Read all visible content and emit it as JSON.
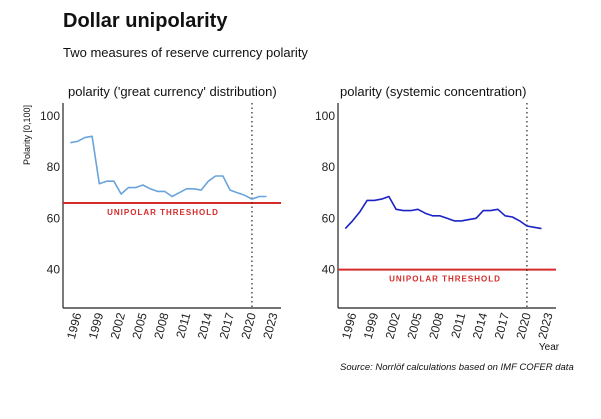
{
  "title": "Dollar unipolarity",
  "subtitle": "Two measures of reserve currency polarity",
  "source": "Source: Norrlöf calculations based on IMF COFER data",
  "colors": {
    "threshold": "#d52b2b",
    "series_left": "#6aa4dc",
    "series_right": "#1b23c4",
    "axis": "#222222"
  },
  "chart_data": [
    {
      "type": "line",
      "title": "polarity ('great currency' distribution)",
      "ylabel": "Polarity [0,100]",
      "xlabel": "",
      "ylim": [
        25,
        105
      ],
      "xlim": [
        1994,
        2024
      ],
      "yticks": [
        40,
        60,
        80,
        100
      ],
      "xticks": [
        "1996",
        "1999",
        "2002",
        "2005",
        "2008",
        "2011",
        "2014",
        "2017",
        "2020",
        "2023"
      ],
      "grid": false,
      "threshold": {
        "value": 66,
        "label": "UNIPOLAR THRESHOLD"
      },
      "vline": 2020,
      "series": [
        {
          "x": [
            1995,
            1996,
            1997,
            1998,
            1999,
            2000,
            2001,
            2002,
            2003,
            2004,
            2005,
            2006,
            2007,
            2008,
            2009,
            2010,
            2011,
            2012,
            2013,
            2014,
            2015,
            2016,
            2017,
            2018,
            2019,
            2020,
            2021,
            2022
          ],
          "y": [
            89.5,
            90,
            91.5,
            92,
            73.5,
            74.5,
            74.5,
            69.5,
            72,
            72,
            73,
            71.5,
            70.5,
            70.5,
            68.5,
            70,
            71.5,
            71.5,
            71,
            74.5,
            76.5,
            76.5,
            71,
            70,
            69,
            67.5,
            68.5,
            68.5
          ]
        }
      ]
    },
    {
      "type": "line",
      "title": "polarity (systemic concentration)",
      "ylabel": "",
      "xlabel": "Year",
      "ylim": [
        25,
        105
      ],
      "xlim": [
        1994,
        2024
      ],
      "yticks": [
        40,
        60,
        80,
        100
      ],
      "xticks": [
        "1996",
        "1999",
        "2002",
        "2005",
        "2008",
        "2011",
        "2014",
        "2017",
        "2020",
        "2023"
      ],
      "grid": false,
      "threshold": {
        "value": 40,
        "label": "UNIPOLAR THRESHOLD"
      },
      "vline": 2020,
      "series": [
        {
          "x": [
            1995,
            1996,
            1997,
            1998,
            1999,
            2000,
            2001,
            2002,
            2003,
            2004,
            2005,
            2006,
            2007,
            2008,
            2009,
            2010,
            2011,
            2012,
            2013,
            2014,
            2015,
            2016,
            2017,
            2018,
            2019,
            2020,
            2021,
            2022
          ],
          "y": [
            56,
            59,
            62.5,
            67,
            67,
            67.5,
            68.5,
            63.5,
            63,
            63,
            63.5,
            62,
            61,
            61,
            60,
            59,
            59,
            59.5,
            60,
            63,
            63,
            63.5,
            61,
            60.5,
            59,
            57,
            56.5,
            56
          ]
        }
      ]
    }
  ]
}
